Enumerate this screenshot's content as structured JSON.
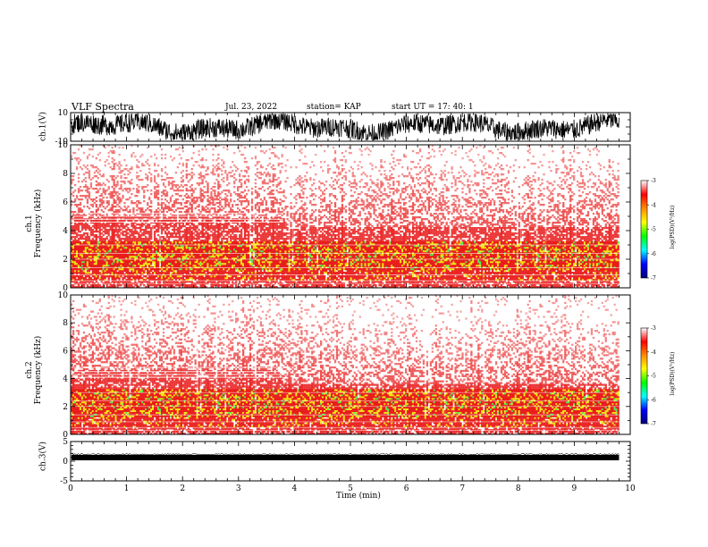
{
  "header": {
    "title": "VLF Spectra",
    "date": "Jul. 23, 2022",
    "station": "station= KAP",
    "start": "start  UT  =   17: 40: 1"
  },
  "colors": {
    "spectrogram_high": "#e81414",
    "spectrogram_mid": "#f0e400",
    "spectrogram_low": "#48e848",
    "background": "#ffffff",
    "trace": "#000000"
  },
  "colorbar": {
    "label": "log(PSD)(V²/Hz)",
    "ticks": [
      "-3",
      "-4",
      "-5",
      "-6",
      "-7"
    ],
    "colors": [
      "#ffffff",
      "#ff0000",
      "#ff8c00",
      "#ffff00",
      "#00ff00",
      "#00ffff",
      "#0000ff",
      "#00007f"
    ]
  },
  "chart_data": [
    {
      "type": "line",
      "panel": "ch1-waveform",
      "ylabel": "ch.1(V)",
      "ylim": [
        -10,
        10
      ],
      "yticks": [
        "10",
        "-10"
      ],
      "xlim": [
        0,
        10
      ],
      "data_extent_min": 9.8,
      "description_values": {
        "amplitude_min": -9,
        "amplitude_max": 9
      }
    },
    {
      "type": "heatmap",
      "panel": "ch1-spectrogram",
      "ylabel": "ch.1\nFrequency (kHz)",
      "ylim": [
        0,
        10
      ],
      "yticks": [
        "0",
        "2",
        "4",
        "6",
        "8",
        "10"
      ],
      "xlim": [
        0,
        10
      ],
      "data_extent_min": 9.8,
      "zlim": [
        -7,
        -3
      ]
    },
    {
      "type": "heatmap",
      "panel": "ch2-spectrogram",
      "ylabel": "ch.2\nFrequency (kHz)",
      "ylim": [
        0,
        10
      ],
      "yticks": [
        "0",
        "2",
        "4",
        "6",
        "8",
        "10"
      ],
      "xlim": [
        0,
        10
      ],
      "data_extent_min": 9.8,
      "zlim": [
        -7,
        -3
      ]
    },
    {
      "type": "line",
      "panel": "ch3-waveform",
      "ylabel": "ch.3(V)",
      "ylim": [
        -5,
        5
      ],
      "yticks": [
        "5",
        "0",
        "-5"
      ],
      "xlim": [
        0,
        10
      ],
      "data_extent_min": 9.8,
      "xlabel": "Time (min)",
      "xticks": [
        "0",
        "1",
        "2",
        "3",
        "4",
        "5",
        "6",
        "7",
        "8",
        "9",
        "10"
      ]
    }
  ]
}
